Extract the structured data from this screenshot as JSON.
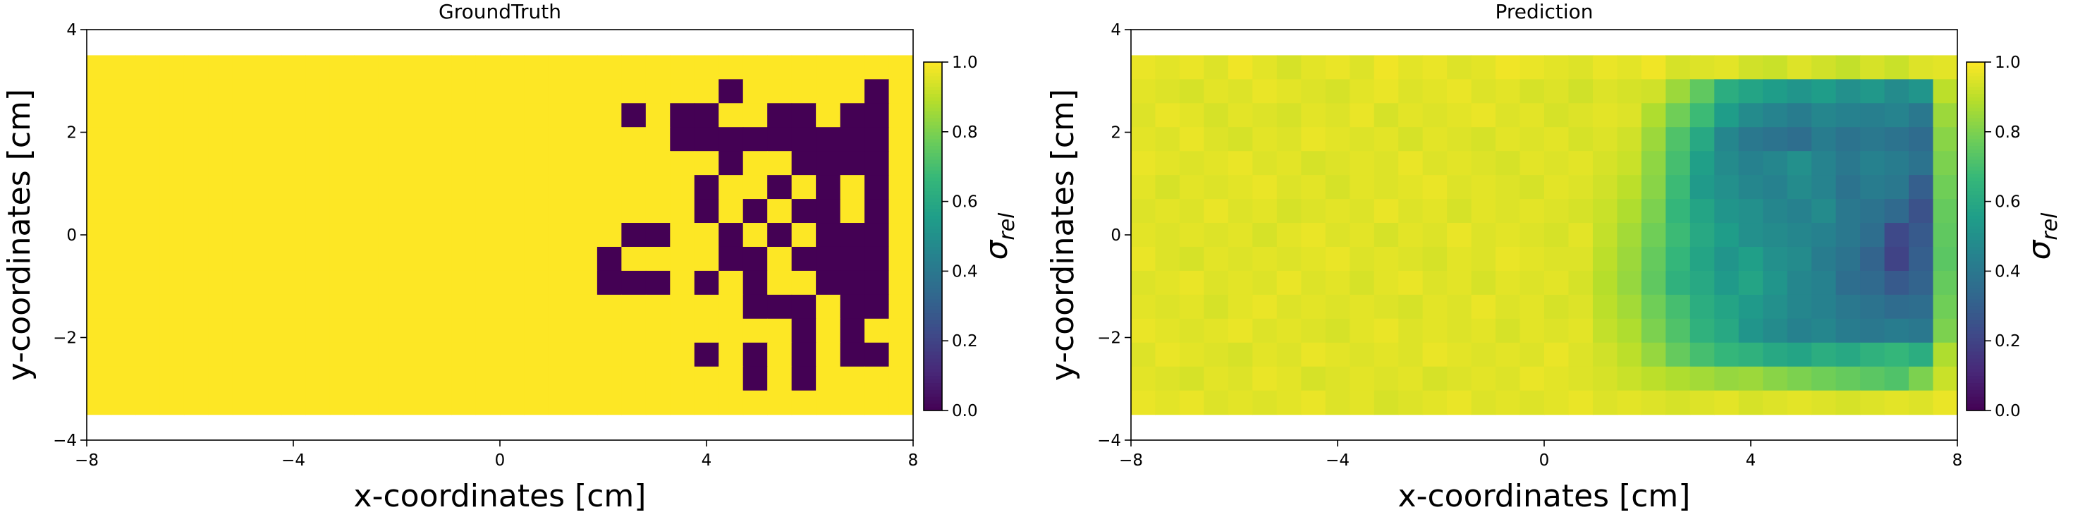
{
  "colormap": {
    "name": "viridis",
    "low_color": "#440154",
    "high_color": "#fde725"
  },
  "chart_data": [
    {
      "type": "heatmap",
      "title": "GroundTruth",
      "xlabel": "x-coordinates [cm]",
      "ylabel": "y-coordinates [cm]",
      "xlim": [
        -8,
        8
      ],
      "ylim": [
        -4,
        4
      ],
      "xticks": [
        -8,
        -4,
        0,
        4,
        8
      ],
      "yticks": [
        -4,
        -2,
        0,
        2,
        4
      ],
      "xtick_labels": [
        "−8",
        "−4",
        "0",
        "4",
        "8"
      ],
      "ytick_labels": [
        "−4",
        "−2",
        "0",
        "2",
        "4"
      ],
      "grid": false,
      "colorbar": {
        "label": "σ",
        "label_sub": "rel",
        "range": [
          0,
          1
        ],
        "ticks": [
          "0.0",
          "0.2",
          "0.4",
          "0.6",
          "0.8",
          "1.0"
        ]
      },
      "cell_grid": {
        "x_range": [
          -8,
          8
        ],
        "y_range": [
          -3.5,
          3.5
        ],
        "cols": 34,
        "rows": 15
      },
      "values": [
        [
          1,
          1,
          1,
          1,
          1,
          1,
          1,
          1,
          1,
          1,
          1,
          1,
          1,
          1,
          1,
          1,
          1,
          1,
          1,
          1,
          1,
          1,
          1,
          1,
          1,
          1,
          1,
          1,
          1,
          1,
          1,
          1,
          1,
          1
        ],
        [
          1,
          1,
          1,
          1,
          1,
          1,
          1,
          1,
          1,
          1,
          1,
          1,
          1,
          1,
          1,
          1,
          1,
          1,
          1,
          1,
          1,
          1,
          1,
          1,
          1,
          1,
          0,
          1,
          1,
          1,
          1,
          1,
          0,
          1
        ],
        [
          1,
          1,
          1,
          1,
          1,
          1,
          1,
          1,
          1,
          1,
          1,
          1,
          1,
          1,
          1,
          1,
          1,
          1,
          1,
          1,
          1,
          1,
          0,
          1,
          0,
          0,
          1,
          1,
          0,
          0,
          1,
          0,
          0,
          1
        ],
        [
          1,
          1,
          1,
          1,
          1,
          1,
          1,
          1,
          1,
          1,
          1,
          1,
          1,
          1,
          1,
          1,
          1,
          1,
          1,
          1,
          1,
          1,
          1,
          1,
          0,
          0,
          0,
          0,
          0,
          0,
          0,
          0,
          0,
          1
        ],
        [
          1,
          1,
          1,
          1,
          1,
          1,
          1,
          1,
          1,
          1,
          1,
          1,
          1,
          1,
          1,
          1,
          1,
          1,
          1,
          1,
          1,
          1,
          1,
          1,
          1,
          1,
          0,
          1,
          1,
          0,
          0,
          0,
          0,
          1
        ],
        [
          1,
          1,
          1,
          1,
          1,
          1,
          1,
          1,
          1,
          1,
          1,
          1,
          1,
          1,
          1,
          1,
          1,
          1,
          1,
          1,
          1,
          1,
          1,
          1,
          1,
          0,
          1,
          1,
          0,
          1,
          0,
          1,
          0,
          1
        ],
        [
          1,
          1,
          1,
          1,
          1,
          1,
          1,
          1,
          1,
          1,
          1,
          1,
          1,
          1,
          1,
          1,
          1,
          1,
          1,
          1,
          1,
          1,
          1,
          1,
          1,
          0,
          1,
          0,
          1,
          0,
          0,
          1,
          0,
          1
        ],
        [
          1,
          1,
          1,
          1,
          1,
          1,
          1,
          1,
          1,
          1,
          1,
          1,
          1,
          1,
          1,
          1,
          1,
          1,
          1,
          1,
          1,
          1,
          0,
          0,
          1,
          1,
          0,
          1,
          0,
          1,
          0,
          0,
          0,
          1
        ],
        [
          1,
          1,
          1,
          1,
          1,
          1,
          1,
          1,
          1,
          1,
          1,
          1,
          1,
          1,
          1,
          1,
          1,
          1,
          1,
          1,
          1,
          0,
          1,
          1,
          1,
          1,
          0,
          0,
          1,
          0,
          0,
          0,
          0,
          1
        ],
        [
          1,
          1,
          1,
          1,
          1,
          1,
          1,
          1,
          1,
          1,
          1,
          1,
          1,
          1,
          1,
          1,
          1,
          1,
          1,
          1,
          1,
          0,
          0,
          0,
          1,
          0,
          1,
          0,
          1,
          1,
          0,
          0,
          0,
          1
        ],
        [
          1,
          1,
          1,
          1,
          1,
          1,
          1,
          1,
          1,
          1,
          1,
          1,
          1,
          1,
          1,
          1,
          1,
          1,
          1,
          1,
          1,
          1,
          1,
          1,
          1,
          1,
          1,
          0,
          0,
          0,
          1,
          0,
          0,
          1
        ],
        [
          1,
          1,
          1,
          1,
          1,
          1,
          1,
          1,
          1,
          1,
          1,
          1,
          1,
          1,
          1,
          1,
          1,
          1,
          1,
          1,
          1,
          1,
          1,
          1,
          1,
          1,
          1,
          1,
          1,
          0,
          1,
          0,
          1,
          1
        ],
        [
          1,
          1,
          1,
          1,
          1,
          1,
          1,
          1,
          1,
          1,
          1,
          1,
          1,
          1,
          1,
          1,
          1,
          1,
          1,
          1,
          1,
          1,
          1,
          1,
          1,
          0,
          1,
          0,
          1,
          0,
          1,
          0,
          0,
          1
        ],
        [
          1,
          1,
          1,
          1,
          1,
          1,
          1,
          1,
          1,
          1,
          1,
          1,
          1,
          1,
          1,
          1,
          1,
          1,
          1,
          1,
          1,
          1,
          1,
          1,
          1,
          1,
          1,
          0,
          1,
          0,
          1,
          1,
          1,
          1
        ],
        [
          1,
          1,
          1,
          1,
          1,
          1,
          1,
          1,
          1,
          1,
          1,
          1,
          1,
          1,
          1,
          1,
          1,
          1,
          1,
          1,
          1,
          1,
          1,
          1,
          1,
          1,
          1,
          1,
          1,
          1,
          1,
          1,
          1,
          1
        ]
      ]
    },
    {
      "type": "heatmap",
      "title": "Prediction",
      "xlabel": "x-coordinates [cm]",
      "ylabel": "y-coordinates [cm]",
      "xlim": [
        -8,
        8
      ],
      "ylim": [
        -4,
        4
      ],
      "xticks": [
        -8,
        -4,
        0,
        4,
        8
      ],
      "yticks": [
        -4,
        -2,
        0,
        2,
        4
      ],
      "xtick_labels": [
        "−8",
        "−4",
        "0",
        "4",
        "8"
      ],
      "ytick_labels": [
        "−4",
        "−2",
        "0",
        "2",
        "4"
      ],
      "grid": false,
      "colorbar": {
        "label": "σ",
        "label_sub": "rel",
        "range": [
          0,
          1
        ],
        "ticks": [
          "0.0",
          "0.2",
          "0.4",
          "0.6",
          "0.8",
          "1.0"
        ]
      },
      "cell_grid": {
        "x_range": [
          -8,
          8
        ],
        "y_range": [
          -3.5,
          3.5
        ],
        "cols": 34,
        "rows": 15
      },
      "values": [
        [
          0.97,
          0.96,
          0.97,
          0.95,
          0.98,
          0.96,
          0.94,
          0.96,
          0.97,
          0.95,
          0.98,
          0.96,
          0.97,
          0.95,
          0.96,
          0.98,
          0.97,
          0.96,
          0.95,
          0.97,
          0.96,
          0.98,
          0.94,
          0.95,
          0.96,
          0.93,
          0.92,
          0.95,
          0.93,
          0.91,
          0.94,
          0.92,
          0.95,
          0.96
        ],
        [
          0.96,
          0.95,
          0.94,
          0.96,
          0.95,
          0.97,
          0.96,
          0.95,
          0.94,
          0.96,
          0.97,
          0.95,
          0.96,
          0.97,
          0.95,
          0.96,
          0.94,
          0.95,
          0.93,
          0.95,
          0.94,
          0.93,
          0.85,
          0.75,
          0.62,
          0.58,
          0.55,
          0.52,
          0.55,
          0.5,
          0.53,
          0.48,
          0.52,
          0.9
        ],
        [
          0.95,
          0.97,
          0.96,
          0.94,
          0.96,
          0.95,
          0.94,
          0.96,
          0.95,
          0.97,
          0.94,
          0.96,
          0.95,
          0.96,
          0.97,
          0.95,
          0.96,
          0.94,
          0.95,
          0.96,
          0.95,
          0.88,
          0.78,
          0.68,
          0.55,
          0.48,
          0.45,
          0.42,
          0.46,
          0.44,
          0.43,
          0.45,
          0.4,
          0.85
        ],
        [
          0.96,
          0.95,
          0.97,
          0.95,
          0.94,
          0.96,
          0.95,
          0.97,
          0.96,
          0.95,
          0.96,
          0.94,
          0.96,
          0.95,
          0.94,
          0.96,
          0.95,
          0.96,
          0.94,
          0.95,
          0.93,
          0.85,
          0.72,
          0.6,
          0.46,
          0.4,
          0.38,
          0.36,
          0.42,
          0.38,
          0.4,
          0.38,
          0.35,
          0.82
        ],
        [
          0.97,
          0.96,
          0.95,
          0.96,
          0.97,
          0.95,
          0.96,
          0.94,
          0.95,
          0.96,
          0.95,
          0.97,
          0.95,
          0.96,
          0.95,
          0.94,
          0.96,
          0.95,
          0.96,
          0.94,
          0.92,
          0.83,
          0.7,
          0.56,
          0.48,
          0.44,
          0.46,
          0.5,
          0.45,
          0.4,
          0.44,
          0.42,
          0.38,
          0.8
        ],
        [
          0.96,
          0.94,
          0.96,
          0.95,
          0.96,
          0.97,
          0.95,
          0.96,
          0.94,
          0.96,
          0.95,
          0.96,
          0.97,
          0.95,
          0.96,
          0.95,
          0.94,
          0.96,
          0.95,
          0.93,
          0.9,
          0.82,
          0.68,
          0.54,
          0.5,
          0.46,
          0.44,
          0.48,
          0.45,
          0.38,
          0.42,
          0.4,
          0.3,
          0.78
        ],
        [
          0.95,
          0.96,
          0.95,
          0.97,
          0.95,
          0.96,
          0.94,
          0.95,
          0.96,
          0.95,
          0.97,
          0.95,
          0.96,
          0.94,
          0.96,
          0.95,
          0.96,
          0.95,
          0.94,
          0.92,
          0.88,
          0.8,
          0.66,
          0.58,
          0.52,
          0.5,
          0.46,
          0.44,
          0.48,
          0.4,
          0.38,
          0.34,
          0.25,
          0.76
        ],
        [
          0.96,
          0.95,
          0.96,
          0.95,
          0.96,
          0.94,
          0.96,
          0.97,
          0.95,
          0.96,
          0.94,
          0.96,
          0.95,
          0.97,
          0.95,
          0.96,
          0.95,
          0.94,
          0.96,
          0.91,
          0.86,
          0.78,
          0.68,
          0.6,
          0.55,
          0.5,
          0.48,
          0.46,
          0.44,
          0.4,
          0.36,
          0.22,
          0.28,
          0.75
        ],
        [
          0.97,
          0.95,
          0.94,
          0.96,
          0.95,
          0.96,
          0.95,
          0.96,
          0.97,
          0.95,
          0.96,
          0.95,
          0.94,
          0.96,
          0.95,
          0.97,
          0.96,
          0.95,
          0.95,
          0.9,
          0.85,
          0.76,
          0.66,
          0.58,
          0.52,
          0.56,
          0.5,
          0.48,
          0.42,
          0.38,
          0.32,
          0.2,
          0.3,
          0.74
        ],
        [
          0.95,
          0.96,
          0.97,
          0.95,
          0.96,
          0.95,
          0.97,
          0.95,
          0.96,
          0.94,
          0.96,
          0.97,
          0.95,
          0.96,
          0.94,
          0.96,
          0.95,
          0.96,
          0.94,
          0.89,
          0.84,
          0.75,
          0.64,
          0.6,
          0.54,
          0.58,
          0.52,
          0.46,
          0.44,
          0.36,
          0.34,
          0.28,
          0.32,
          0.76
        ],
        [
          0.96,
          0.95,
          0.96,
          0.94,
          0.96,
          0.97,
          0.95,
          0.96,
          0.95,
          0.96,
          0.95,
          0.94,
          0.96,
          0.95,
          0.97,
          0.95,
          0.96,
          0.94,
          0.95,
          0.9,
          0.86,
          0.78,
          0.7,
          0.62,
          0.58,
          0.54,
          0.5,
          0.46,
          0.44,
          0.4,
          0.38,
          0.35,
          0.36,
          0.78
        ],
        [
          0.97,
          0.96,
          0.95,
          0.96,
          0.97,
          0.95,
          0.96,
          0.95,
          0.94,
          0.96,
          0.97,
          0.95,
          0.96,
          0.95,
          0.96,
          0.94,
          0.96,
          0.95,
          0.96,
          0.91,
          0.88,
          0.8,
          0.72,
          0.64,
          0.6,
          0.52,
          0.48,
          0.44,
          0.46,
          0.42,
          0.4,
          0.42,
          0.4,
          0.8
        ],
        [
          0.95,
          0.97,
          0.96,
          0.95,
          0.94,
          0.96,
          0.95,
          0.97,
          0.96,
          0.95,
          0.96,
          0.95,
          0.97,
          0.96,
          0.95,
          0.96,
          0.95,
          0.97,
          0.95,
          0.93,
          0.9,
          0.84,
          0.76,
          0.7,
          0.66,
          0.64,
          0.6,
          0.58,
          0.62,
          0.6,
          0.64,
          0.66,
          0.62,
          0.88
        ],
        [
          0.96,
          0.95,
          0.94,
          0.96,
          0.95,
          0.97,
          0.96,
          0.94,
          0.95,
          0.96,
          0.95,
          0.96,
          0.94,
          0.95,
          0.96,
          0.95,
          0.97,
          0.96,
          0.95,
          0.94,
          0.92,
          0.9,
          0.88,
          0.86,
          0.84,
          0.85,
          0.82,
          0.8,
          0.78,
          0.76,
          0.74,
          0.72,
          0.8,
          0.92
        ],
        [
          0.97,
          0.96,
          0.97,
          0.95,
          0.96,
          0.95,
          0.96,
          0.97,
          0.95,
          0.96,
          0.94,
          0.95,
          0.96,
          0.97,
          0.95,
          0.96,
          0.95,
          0.96,
          0.97,
          0.95,
          0.96,
          0.95,
          0.94,
          0.95,
          0.96,
          0.94,
          0.95,
          0.96,
          0.95,
          0.94,
          0.95,
          0.96,
          0.95,
          0.97
        ]
      ]
    }
  ]
}
